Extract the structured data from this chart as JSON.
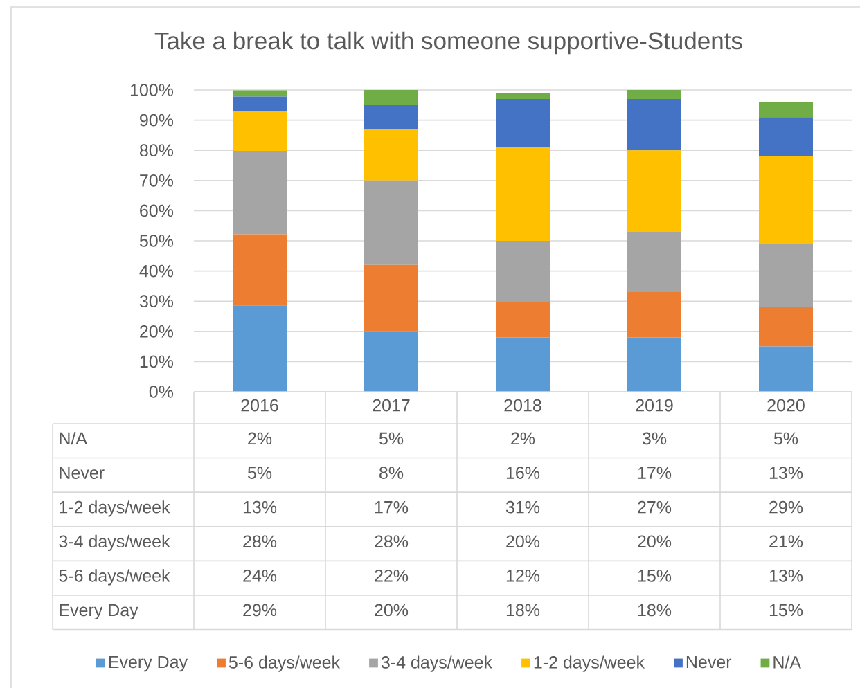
{
  "chart_data": {
    "type": "bar",
    "stacked": true,
    "title": "Take a break to talk with someone supportive-Students",
    "categories": [
      "2016",
      "2017",
      "2018",
      "2019",
      "2020"
    ],
    "series": [
      {
        "name": "Every Day",
        "color": "#5b9bd5",
        "values": [
          28.6,
          20,
          18,
          18,
          15
        ],
        "value_labels": [
          "29%",
          "20%",
          "18%",
          "18%",
          "15%"
        ]
      },
      {
        "name": "5-6 days/week",
        "color": "#ed7d31",
        "values": [
          23.6,
          22,
          12,
          15,
          13
        ],
        "value_labels": [
          "24%",
          "22%",
          "12%",
          "15%",
          "13%"
        ]
      },
      {
        "name": "3-4 days/week",
        "color": "#a5a5a5",
        "values": [
          27.6,
          28,
          20,
          20,
          21
        ],
        "value_labels": [
          "28%",
          "28%",
          "20%",
          "20%",
          "21%"
        ]
      },
      {
        "name": "1-2 days/week",
        "color": "#ffc000",
        "values": [
          13.2,
          17,
          31,
          27,
          29
        ],
        "value_labels": [
          "13%",
          "17%",
          "31%",
          "27%",
          "29%"
        ]
      },
      {
        "name": "Never",
        "color": "#4472c4",
        "values": [
          4.8,
          8,
          16,
          17,
          13
        ],
        "value_labels": [
          "5%",
          "8%",
          "16%",
          "17%",
          "13%"
        ]
      },
      {
        "name": "N/A",
        "color": "#70ad47",
        "values": [
          2.1,
          5,
          2,
          3,
          5
        ],
        "value_labels": [
          "2%",
          "5%",
          "2%",
          "3%",
          "5%"
        ]
      }
    ],
    "ylim": [
      0,
      100
    ],
    "yticks": [
      {
        "value": 0,
        "label": "0%"
      },
      {
        "value": 10,
        "label": "10%"
      },
      {
        "value": 20,
        "label": "20%"
      },
      {
        "value": 30,
        "label": "30%"
      },
      {
        "value": 40,
        "label": "40%"
      },
      {
        "value": 50,
        "label": "50%"
      },
      {
        "value": 60,
        "label": "60%"
      },
      {
        "value": 70,
        "label": "70%"
      },
      {
        "value": 80,
        "label": "80%"
      },
      {
        "value": 90,
        "label": "90%"
      },
      {
        "value": 100,
        "label": "100%"
      }
    ],
    "grid": "y",
    "legend": "bottom"
  }
}
